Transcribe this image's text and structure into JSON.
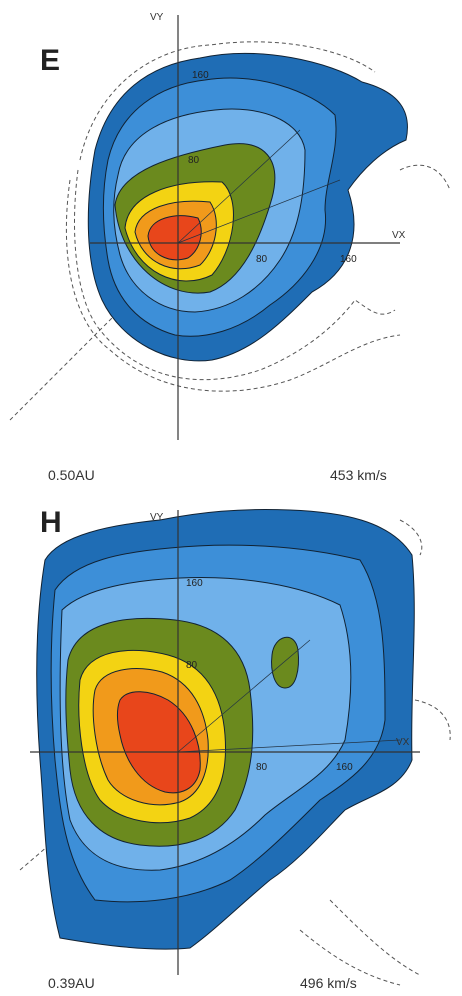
{
  "panels": [
    {
      "label": "E",
      "axis_y": "VY",
      "axis_x": "VX",
      "contour_labels": [
        "160",
        "80",
        "80",
        "160"
      ],
      "distance": "0.50AU",
      "speed": "453 km/s"
    },
    {
      "label": "H",
      "axis_y": "VY",
      "axis_x": "VX",
      "contour_labels": [
        "160",
        "80",
        "80",
        "160"
      ],
      "distance": "0.39AU",
      "speed": "496 km/s"
    }
  ]
}
